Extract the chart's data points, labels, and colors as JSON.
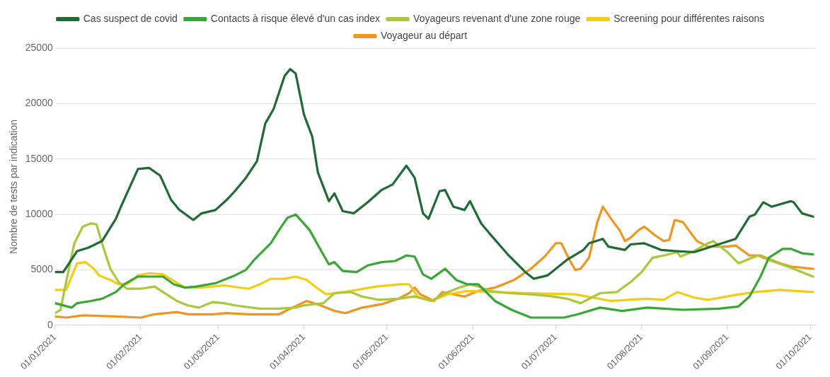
{
  "chart_data": {
    "type": "line",
    "ylabel": "Nombre de tests par indication",
    "ylim": [
      0,
      25000
    ],
    "yticks": [
      0,
      5000,
      10000,
      15000,
      20000,
      25000
    ],
    "xlim": [
      "2021-01-01",
      "2021-10-03"
    ],
    "xticks": [
      {
        "value": "2021-01-01",
        "label": "01/01/2021"
      },
      {
        "value": "2021-02-01",
        "label": "01/02/2021"
      },
      {
        "value": "2021-03-01",
        "label": "01/03/2021"
      },
      {
        "value": "2021-04-01",
        "label": "01/04/2021"
      },
      {
        "value": "2021-05-01",
        "label": "01/05/2021"
      },
      {
        "value": "2021-06-01",
        "label": "01/06/2021"
      },
      {
        "value": "2021-07-01",
        "label": "01/07/2021"
      },
      {
        "value": "2021-08-01",
        "label": "01/08/2021"
      },
      {
        "value": "2021-09-01",
        "label": "01/09/2021"
      },
      {
        "value": "2021-10-01",
        "label": "01/10/2021"
      }
    ],
    "grid": "y",
    "legend": "top",
    "line_style": "solid",
    "series": [
      {
        "name": "Cas suspect de covid",
        "color": "#1f6b34",
        "x": [
          "2021-01-01",
          "2021-01-04",
          "2021-01-09",
          "2021-01-13",
          "2021-01-18",
          "2021-01-23",
          "2021-01-25",
          "2021-01-29",
          "2021-01-31",
          "2021-02-04",
          "2021-02-08",
          "2021-02-12",
          "2021-02-15",
          "2021-02-20",
          "2021-02-23",
          "2021-02-28",
          "2021-03-04",
          "2021-03-07",
          "2021-03-11",
          "2021-03-15",
          "2021-03-18",
          "2021-03-21",
          "2021-03-25",
          "2021-03-27",
          "2021-03-29",
          "2021-04-01",
          "2021-04-04",
          "2021-04-06",
          "2021-04-10",
          "2021-04-12",
          "2021-04-15",
          "2021-04-19",
          "2021-04-24",
          "2021-04-29",
          "2021-05-03",
          "2021-05-08",
          "2021-05-11",
          "2021-05-14",
          "2021-05-16",
          "2021-05-20",
          "2021-05-22",
          "2021-05-25",
          "2021-05-29",
          "2021-05-31",
          "2021-06-04",
          "2021-06-07",
          "2021-06-14",
          "2021-06-20",
          "2021-06-23",
          "2021-06-28",
          "2021-07-05",
          "2021-07-11",
          "2021-07-13",
          "2021-07-18",
          "2021-07-20",
          "2021-07-26",
          "2021-07-28",
          "2021-08-02",
          "2021-08-08",
          "2021-08-13",
          "2021-08-20",
          "2021-08-25",
          "2021-08-30",
          "2021-09-04",
          "2021-09-09",
          "2021-09-11",
          "2021-09-14",
          "2021-09-17",
          "2021-09-24",
          "2021-09-25",
          "2021-09-28",
          "2021-10-02"
        ],
        "values": [
          4800,
          4800,
          6700,
          7000,
          7600,
          9600,
          10800,
          13000,
          14100,
          14200,
          13500,
          11300,
          10400,
          9500,
          10100,
          10400,
          11300,
          12100,
          13300,
          14800,
          18200,
          19500,
          22500,
          23100,
          22700,
          19000,
          17000,
          13800,
          11200,
          11900,
          10300,
          10100,
          11100,
          12200,
          12700,
          14400,
          13300,
          10100,
          9600,
          12100,
          12200,
          10700,
          10400,
          11200,
          9200,
          8300,
          6300,
          4800,
          4200,
          4500,
          5900,
          6800,
          7400,
          7800,
          7100,
          6800,
          7300,
          7400,
          6800,
          6700,
          6600,
          7000,
          7400,
          7800,
          9800,
          10000,
          11100,
          10700,
          11200,
          11100,
          10100,
          9800
        ]
      },
      {
        "name": "Contacts à risque élevé d'un cas index",
        "color": "#3aa635",
        "x": [
          "2021-01-01",
          "2021-01-07",
          "2021-01-09",
          "2021-01-14",
          "2021-01-18",
          "2021-01-23",
          "2021-01-26",
          "2021-01-31",
          "2021-02-06",
          "2021-02-09",
          "2021-02-13",
          "2021-02-17",
          "2021-02-21",
          "2021-02-28",
          "2021-03-07",
          "2021-03-11",
          "2021-03-14",
          "2021-03-20",
          "2021-03-23",
          "2021-03-26",
          "2021-03-29",
          "2021-04-03",
          "2021-04-07",
          "2021-04-10",
          "2021-04-12",
          "2021-04-15",
          "2021-04-20",
          "2021-04-24",
          "2021-04-29",
          "2021-05-04",
          "2021-05-08",
          "2021-05-11",
          "2021-05-14",
          "2021-05-17",
          "2021-05-22",
          "2021-05-26",
          "2021-05-30",
          "2021-06-03",
          "2021-06-09",
          "2021-06-15",
          "2021-06-22",
          "2021-06-25",
          "2021-07-01",
          "2021-07-04",
          "2021-07-09",
          "2021-07-17",
          "2021-07-25",
          "2021-08-03",
          "2021-08-16",
          "2021-08-29",
          "2021-09-05",
          "2021-09-09",
          "2021-09-13",
          "2021-09-16",
          "2021-09-21",
          "2021-09-24",
          "2021-09-28",
          "2021-10-02"
        ],
        "values": [
          2000,
          1600,
          2000,
          2200,
          2400,
          3000,
          3700,
          4400,
          4400,
          4400,
          3700,
          3400,
          3500,
          3800,
          4500,
          5000,
          5900,
          7400,
          8600,
          9700,
          10000,
          8600,
          6800,
          5500,
          5700,
          4900,
          4800,
          5400,
          5700,
          5800,
          6300,
          6200,
          4600,
          4200,
          5100,
          4100,
          3700,
          3700,
          2200,
          1400,
          700,
          700,
          700,
          700,
          1000,
          1600,
          1300,
          1600,
          1400,
          1500,
          1700,
          2600,
          4400,
          6100,
          6900,
          6900,
          6500,
          6400
        ]
      },
      {
        "name": "Voyageurs revenant d'une zone rouge",
        "color": "#a9c93a",
        "x": [
          "2021-01-01",
          "2021-01-03",
          "2021-01-05",
          "2021-01-08",
          "2021-01-11",
          "2021-01-14",
          "2021-01-16",
          "2021-01-18",
          "2021-01-21",
          "2021-01-24",
          "2021-01-27",
          "2021-02-01",
          "2021-02-06",
          "2021-02-09",
          "2021-02-14",
          "2021-02-18",
          "2021-02-22",
          "2021-02-27",
          "2021-03-03",
          "2021-03-07",
          "2021-03-16",
          "2021-03-23",
          "2021-03-29",
          "2021-04-01",
          "2021-04-08",
          "2021-04-12",
          "2021-04-18",
          "2021-04-22",
          "2021-04-28",
          "2021-05-05",
          "2021-05-11",
          "2021-05-17",
          "2021-05-23",
          "2021-05-27",
          "2021-05-31",
          "2021-06-03",
          "2021-06-07",
          "2021-06-14",
          "2021-06-22",
          "2021-06-30",
          "2021-07-05",
          "2021-07-10",
          "2021-07-17",
          "2021-07-23",
          "2021-07-28",
          "2021-08-01",
          "2021-08-05",
          "2021-08-09",
          "2021-08-14",
          "2021-08-15",
          "2021-08-20",
          "2021-08-25",
          "2021-08-27",
          "2021-09-01",
          "2021-09-05",
          "2021-09-09",
          "2021-09-12",
          "2021-09-16",
          "2021-09-24",
          "2021-10-02"
        ],
        "values": [
          1100,
          1400,
          3900,
          7400,
          8900,
          9200,
          9100,
          7400,
          5100,
          3900,
          3300,
          3300,
          3500,
          3000,
          2200,
          1800,
          1600,
          2100,
          2000,
          1800,
          1500,
          1500,
          1600,
          1800,
          2000,
          2900,
          3000,
          2600,
          2300,
          2400,
          2600,
          2200,
          3000,
          3400,
          3700,
          3500,
          3100,
          2900,
          2800,
          2600,
          2400,
          2000,
          2900,
          3000,
          3900,
          4800,
          6100,
          6300,
          6600,
          6200,
          6700,
          7400,
          7600,
          6600,
          5600,
          6000,
          6300,
          5900,
          5200,
          4400
        ]
      },
      {
        "name": "Screening pour différentes raisons",
        "color": "#f5cc14",
        "x": [
          "2021-01-01",
          "2021-01-05",
          "2021-01-09",
          "2021-01-12",
          "2021-01-15",
          "2021-01-17",
          "2021-01-21",
          "2021-01-24",
          "2021-01-27",
          "2021-01-31",
          "2021-02-04",
          "2021-02-09",
          "2021-02-13",
          "2021-02-17",
          "2021-02-23",
          "2021-03-03",
          "2021-03-12",
          "2021-03-16",
          "2021-03-20",
          "2021-03-25",
          "2021-03-29",
          "2021-04-02",
          "2021-04-05",
          "2021-04-09",
          "2021-04-18",
          "2021-04-27",
          "2021-05-06",
          "2021-05-09",
          "2021-05-12",
          "2021-05-17",
          "2021-05-23",
          "2021-05-30",
          "2021-06-09",
          "2021-06-22",
          "2021-07-08",
          "2021-07-21",
          "2021-08-03",
          "2021-08-09",
          "2021-08-14",
          "2021-08-20",
          "2021-08-25",
          "2021-09-03",
          "2021-09-11",
          "2021-09-20",
          "2021-10-02"
        ],
        "values": [
          3200,
          3200,
          5600,
          5700,
          5100,
          4500,
          4100,
          3700,
          3700,
          4500,
          4700,
          4600,
          4000,
          3400,
          3400,
          3600,
          3300,
          3700,
          4200,
          4200,
          4400,
          4100,
          3500,
          2800,
          3100,
          3500,
          3700,
          3700,
          2600,
          2200,
          2800,
          3100,
          3000,
          2900,
          2800,
          2200,
          2400,
          2300,
          3000,
          2500,
          2300,
          2700,
          3000,
          3200,
          3000
        ]
      },
      {
        "name": "Voyageur au départ",
        "color": "#f0961e",
        "x": [
          "2021-01-01",
          "2021-01-05",
          "2021-01-11",
          "2021-01-23",
          "2021-02-01",
          "2021-02-06",
          "2021-02-14",
          "2021-02-18",
          "2021-02-27",
          "2021-03-04",
          "2021-03-12",
          "2021-03-23",
          "2021-03-27",
          "2021-04-02",
          "2021-04-07",
          "2021-04-12",
          "2021-04-16",
          "2021-04-22",
          "2021-04-29",
          "2021-05-05",
          "2021-05-09",
          "2021-05-11",
          "2021-05-13",
          "2021-05-18",
          "2021-05-21",
          "2021-05-25",
          "2021-05-29",
          "2021-06-03",
          "2021-06-09",
          "2021-06-16",
          "2021-06-22",
          "2021-06-27",
          "2021-07-01",
          "2021-07-03",
          "2021-07-06",
          "2021-07-08",
          "2021-07-10",
          "2021-07-13",
          "2021-07-16",
          "2021-07-18",
          "2021-07-21",
          "2021-07-24",
          "2021-07-26",
          "2021-07-28",
          "2021-07-31",
          "2021-08-02",
          "2021-08-06",
          "2021-08-09",
          "2021-08-11",
          "2021-08-13",
          "2021-08-16",
          "2021-08-18",
          "2021-08-21",
          "2021-08-25",
          "2021-09-01",
          "2021-09-04",
          "2021-09-09",
          "2021-09-13",
          "2021-09-20",
          "2021-09-24",
          "2021-10-02"
        ],
        "values": [
          800,
          700,
          900,
          800,
          700,
          1000,
          1200,
          1000,
          1000,
          1100,
          1000,
          1000,
          1500,
          2200,
          1800,
          1300,
          1100,
          1600,
          1900,
          2400,
          2900,
          3400,
          2800,
          2200,
          3000,
          2800,
          2600,
          3100,
          3400,
          4100,
          5100,
          6200,
          7400,
          7400,
          5900,
          5000,
          5100,
          6100,
          9300,
          10700,
          9600,
          8600,
          7600,
          7900,
          8600,
          8900,
          8100,
          7600,
          7700,
          9500,
          9300,
          8600,
          7600,
          7100,
          7100,
          7200,
          6300,
          6300,
          5600,
          5300,
          5100
        ]
      }
    ]
  }
}
